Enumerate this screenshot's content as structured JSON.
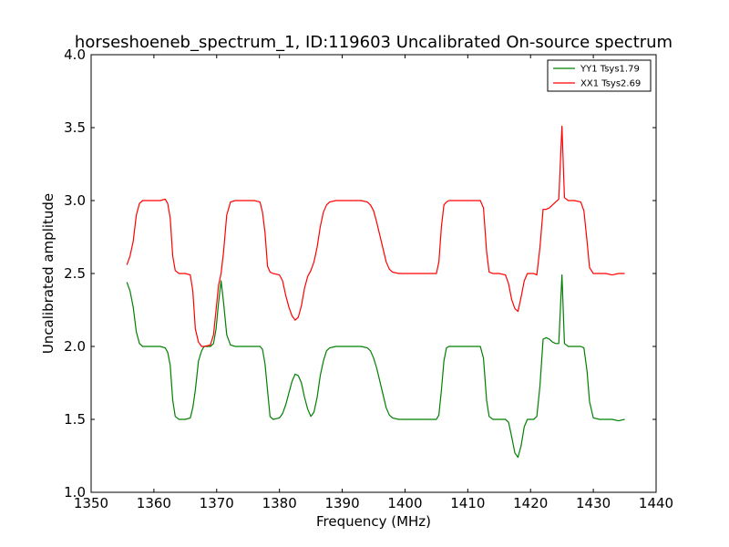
{
  "chart_data": {
    "type": "line",
    "title": "horseshoeneb_spectrum_1, ID:119603 Uncalibrated On-source spectrum",
    "xlabel": "Frequency (MHz)",
    "ylabel": "Uncalibrated amplitude",
    "xlim": [
      1350,
      1440
    ],
    "ylim": [
      1.0,
      4.0
    ],
    "xticks": [
      1350,
      1360,
      1370,
      1380,
      1390,
      1400,
      1410,
      1420,
      1430,
      1440
    ],
    "yticks": [
      1.0,
      1.5,
      2.0,
      2.5,
      3.0,
      3.5,
      4.0
    ],
    "ytick_labels": [
      "1.0",
      "1.5",
      "2.0",
      "2.5",
      "3.0",
      "3.5",
      "4.0"
    ],
    "grid": false,
    "legend": "top-right",
    "series": [
      {
        "name": "YY1 Tsys1.79",
        "color": "#008000",
        "x": [
          1355.7,
          1356.2,
          1356.7,
          1357.2,
          1357.7,
          1358.2,
          1359.0,
          1360.0,
          1361.0,
          1361.8,
          1362.2,
          1362.6,
          1363.0,
          1363.4,
          1364.0,
          1365.0,
          1365.8,
          1366.2,
          1366.6,
          1367.1,
          1367.6,
          1368.0,
          1369.0,
          1369.5,
          1369.9,
          1370.3,
          1370.7,
          1371.1,
          1371.6,
          1372.2,
          1373.0,
          1374.0,
          1375.0,
          1376.0,
          1376.9,
          1377.3,
          1377.7,
          1378.1,
          1378.5,
          1379.0,
          1380.0,
          1380.5,
          1381.0,
          1381.5,
          1382.0,
          1382.5,
          1383.0,
          1383.5,
          1384.0,
          1384.5,
          1385.0,
          1385.5,
          1386.0,
          1386.5,
          1387.0,
          1387.5,
          1388.0,
          1389.0,
          1390.0,
          1391.0,
          1392.0,
          1393.0,
          1394.0,
          1394.5,
          1395.0,
          1395.5,
          1396.0,
          1396.5,
          1397.0,
          1397.5,
          1398.0,
          1399.0,
          1400.0,
          1401.0,
          1402.0,
          1403.0,
          1404.0,
          1405.0,
          1405.4,
          1405.8,
          1406.2,
          1406.6,
          1407.0,
          1408.0,
          1409.0,
          1410.0,
          1411.0,
          1412.0,
          1412.5,
          1413.0,
          1413.4,
          1414.0,
          1415.0,
          1416.0,
          1416.5,
          1417.0,
          1417.5,
          1418.0,
          1418.5,
          1419.0,
          1419.5,
          1420.0,
          1420.5,
          1421.0,
          1421.5,
          1422.0,
          1422.5,
          1423.0,
          1423.5,
          1424.0,
          1424.5,
          1425.0,
          1425.4,
          1426.0,
          1427.0,
          1428.0,
          1428.5,
          1429.0,
          1429.4,
          1430.0,
          1431.0,
          1432.0,
          1433.0,
          1434.0,
          1435.0
        ],
        "y": [
          2.44,
          2.38,
          2.27,
          2.1,
          2.02,
          2.0,
          2.0,
          2.0,
          2.0,
          1.99,
          1.96,
          1.87,
          1.63,
          1.52,
          1.5,
          1.5,
          1.51,
          1.58,
          1.7,
          1.9,
          1.97,
          2.0,
          2.0,
          2.02,
          2.12,
          2.3,
          2.45,
          2.3,
          2.08,
          2.01,
          2.0,
          2.0,
          2.0,
          2.0,
          2.0,
          1.98,
          1.88,
          1.7,
          1.52,
          1.5,
          1.51,
          1.54,
          1.6,
          1.68,
          1.76,
          1.81,
          1.8,
          1.75,
          1.65,
          1.57,
          1.52,
          1.55,
          1.65,
          1.8,
          1.9,
          1.97,
          1.99,
          2.0,
          2.0,
          2.0,
          2.0,
          2.0,
          1.99,
          1.97,
          1.92,
          1.85,
          1.76,
          1.67,
          1.58,
          1.53,
          1.51,
          1.5,
          1.5,
          1.5,
          1.5,
          1.5,
          1.5,
          1.5,
          1.53,
          1.7,
          1.9,
          1.99,
          2.0,
          2.0,
          2.0,
          2.0,
          2.0,
          2.0,
          1.92,
          1.63,
          1.52,
          1.5,
          1.5,
          1.5,
          1.48,
          1.38,
          1.27,
          1.24,
          1.32,
          1.45,
          1.5,
          1.5,
          1.5,
          1.52,
          1.73,
          2.05,
          2.06,
          2.05,
          2.03,
          2.02,
          2.02,
          2.49,
          2.02,
          2.0,
          2.0,
          2.0,
          1.99,
          1.83,
          1.62,
          1.51,
          1.5,
          1.5,
          1.5,
          1.49,
          1.5
        ]
      },
      {
        "name": "XX1 Tsys2.69",
        "color": "#ff0000",
        "x": [
          1355.7,
          1356.2,
          1356.7,
          1357.2,
          1357.7,
          1358.2,
          1359.0,
          1360.0,
          1361.0,
          1361.8,
          1362.2,
          1362.6,
          1363.0,
          1363.4,
          1364.0,
          1365.0,
          1365.8,
          1366.2,
          1366.6,
          1367.1,
          1367.6,
          1368.0,
          1369.0,
          1369.5,
          1369.9,
          1370.3,
          1370.7,
          1371.1,
          1371.6,
          1372.2,
          1373.0,
          1374.0,
          1375.0,
          1376.0,
          1376.9,
          1377.3,
          1377.7,
          1378.1,
          1378.5,
          1379.0,
          1380.0,
          1380.5,
          1381.0,
          1381.5,
          1382.0,
          1382.5,
          1383.0,
          1383.5,
          1384.0,
          1384.5,
          1385.0,
          1385.5,
          1386.0,
          1386.5,
          1387.0,
          1387.5,
          1388.0,
          1389.0,
          1390.0,
          1391.0,
          1392.0,
          1393.0,
          1394.0,
          1394.5,
          1395.0,
          1395.5,
          1396.0,
          1396.5,
          1397.0,
          1397.5,
          1398.0,
          1399.0,
          1400.0,
          1401.0,
          1402.0,
          1403.0,
          1404.0,
          1405.0,
          1405.4,
          1405.8,
          1406.2,
          1406.6,
          1407.0,
          1408.0,
          1409.0,
          1410.0,
          1411.0,
          1412.0,
          1412.5,
          1413.0,
          1413.4,
          1414.0,
          1415.0,
          1416.0,
          1416.5,
          1417.0,
          1417.5,
          1418.0,
          1418.5,
          1419.0,
          1419.5,
          1420.0,
          1420.5,
          1421.0,
          1421.5,
          1422.0,
          1422.5,
          1423.0,
          1423.5,
          1424.0,
          1424.5,
          1425.0,
          1425.4,
          1426.0,
          1427.0,
          1428.0,
          1428.5,
          1429.0,
          1429.4,
          1430.0,
          1431.0,
          1432.0,
          1433.0,
          1434.0,
          1435.0
        ],
        "y": [
          2.56,
          2.62,
          2.72,
          2.9,
          2.98,
          3.0,
          3.0,
          3.0,
          3.0,
          3.01,
          2.98,
          2.88,
          2.62,
          2.52,
          2.5,
          2.5,
          2.49,
          2.38,
          2.12,
          2.03,
          2.0,
          2.0,
          2.01,
          2.08,
          2.25,
          2.42,
          2.5,
          2.65,
          2.9,
          2.99,
          3.0,
          3.0,
          3.0,
          3.0,
          2.99,
          2.92,
          2.78,
          2.55,
          2.51,
          2.5,
          2.49,
          2.45,
          2.35,
          2.27,
          2.21,
          2.18,
          2.2,
          2.28,
          2.4,
          2.48,
          2.52,
          2.58,
          2.68,
          2.82,
          2.92,
          2.97,
          2.99,
          3.0,
          3.0,
          3.0,
          3.0,
          3.0,
          2.99,
          2.97,
          2.93,
          2.85,
          2.76,
          2.67,
          2.58,
          2.53,
          2.51,
          2.5,
          2.5,
          2.5,
          2.5,
          2.5,
          2.5,
          2.5,
          2.58,
          2.82,
          2.97,
          2.99,
          3.0,
          3.0,
          3.0,
          3.0,
          3.0,
          3.0,
          2.95,
          2.65,
          2.51,
          2.5,
          2.5,
          2.49,
          2.43,
          2.32,
          2.26,
          2.24,
          2.34,
          2.45,
          2.5,
          2.5,
          2.5,
          2.49,
          2.68,
          2.94,
          2.94,
          2.95,
          2.97,
          2.99,
          3.01,
          3.51,
          3.02,
          3.0,
          3.0,
          2.99,
          2.93,
          2.72,
          2.54,
          2.5,
          2.5,
          2.5,
          2.49,
          2.5,
          2.5
        ]
      }
    ]
  }
}
